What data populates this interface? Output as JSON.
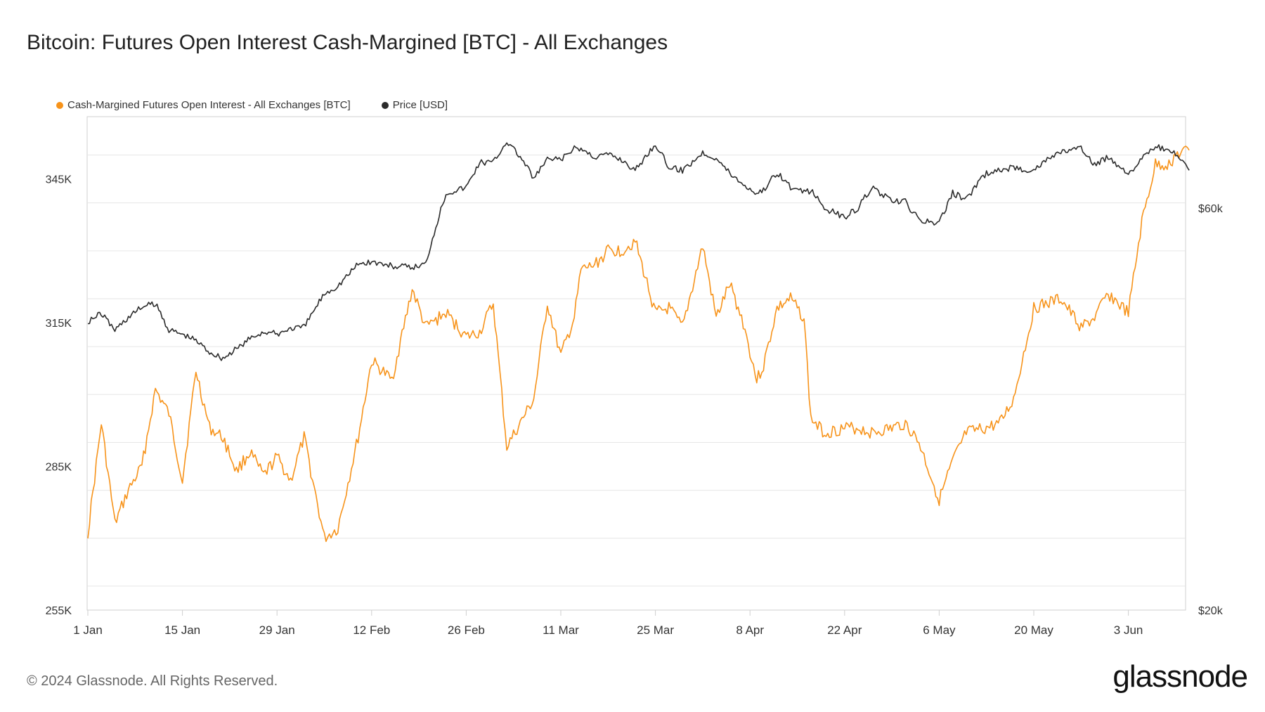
{
  "title": "Bitcoin: Futures Open Interest Cash-Margined [BTC] - All Exchanges",
  "footer": "© 2024 Glassnode. All Rights Reserved.",
  "brand": "glassnode",
  "colors": {
    "oi": "#f7931a",
    "price": "#2b2b2b",
    "grid": "#e6e6e6",
    "axis": "#cfcfcf"
  },
  "chart_data": {
    "type": "line",
    "legend_position": "top-left",
    "grid": true,
    "x_ticks": [
      "1 Jan",
      "15 Jan",
      "29 Jan",
      "12 Feb",
      "26 Feb",
      "11 Mar",
      "25 Mar",
      "8 Apr",
      "22 Apr",
      "6 May",
      "20 May",
      "3 Jun"
    ],
    "x_range_days": [
      0,
      163
    ],
    "left_axis": {
      "ticks": [
        "255K",
        "285K",
        "315K",
        "345K"
      ],
      "range": [
        255000,
        358000
      ]
    },
    "right_axis": {
      "ticks": [
        "$20k",
        "$60k"
      ],
      "scale": "log",
      "range": [
        20000,
        77000
      ]
    },
    "series": [
      {
        "name": "Cash-Margined Futures Open Interest - All Exchanges [BTC]",
        "axis": "left",
        "x_day": [
          0,
          2,
          4,
          6,
          8,
          10,
          12,
          14,
          16,
          18,
          20,
          22,
          24,
          26,
          28,
          30,
          32,
          35,
          37,
          40,
          42,
          45,
          48,
          50,
          53,
          56,
          58,
          60,
          62,
          64,
          66,
          68,
          70,
          72,
          73,
          75,
          77,
          79,
          81,
          84,
          86,
          88,
          91,
          93,
          95,
          97,
          99,
          100,
          102,
          104,
          106,
          107,
          109,
          112,
          114,
          116,
          119,
          121,
          123,
          126,
          128,
          130,
          133,
          135,
          137,
          140,
          142,
          144,
          147,
          149,
          151,
          154,
          156,
          158,
          160,
          161,
          163
        ],
        "values": [
          271000,
          294000,
          273000,
          280000,
          285000,
          301000,
          296000,
          282000,
          305000,
          293000,
          291000,
          284000,
          288000,
          283000,
          287000,
          282000,
          291000,
          270000,
          272000,
          291000,
          307000,
          303000,
          322000,
          314000,
          317000,
          312000,
          313000,
          319000,
          289000,
          294000,
          299000,
          319000,
          308000,
          316000,
          326000,
          327000,
          330000,
          330000,
          332000,
          317000,
          318000,
          314000,
          331000,
          316000,
          323000,
          315000,
          303000,
          306000,
          318000,
          320000,
          316000,
          295000,
          292000,
          293000,
          293000,
          292000,
          293000,
          294000,
          290000,
          278000,
          286000,
          292000,
          293000,
          294000,
          299000,
          318000,
          319000,
          320000,
          314000,
          316000,
          321000,
          317000,
          336000,
          348000,
          348000,
          350000,
          351000
        ]
      },
      {
        "name": "Price [USD]",
        "axis": "right",
        "x_day": [
          0,
          2,
          4,
          6,
          8,
          10,
          12,
          14,
          16,
          18,
          20,
          22,
          24,
          26,
          28,
          30,
          32,
          35,
          37,
          40,
          42,
          45,
          48,
          50,
          53,
          56,
          58,
          60,
          62,
          64,
          66,
          68,
          70,
          72,
          73,
          75,
          77,
          79,
          81,
          84,
          86,
          88,
          91,
          93,
          95,
          97,
          99,
          100,
          102,
          104,
          106,
          107,
          109,
          112,
          114,
          116,
          119,
          121,
          123,
          126,
          128,
          130,
          133,
          135,
          137,
          140,
          142,
          144,
          147,
          149,
          151,
          154,
          156,
          158,
          160,
          161,
          163
        ],
        "values": [
          44000,
          45000,
          43000,
          44500,
          45800,
          46200,
          43000,
          42500,
          41800,
          40500,
          39800,
          40800,
          42000,
          42800,
          42500,
          43200,
          43300,
          47500,
          48500,
          51500,
          51800,
          51200,
          51000,
          51500,
          62500,
          63500,
          68000,
          68000,
          72000,
          69000,
          65000,
          68500,
          68500,
          70500,
          70500,
          69000,
          69500,
          68500,
          66500,
          71500,
          67000,
          66500,
          69800,
          68800,
          66000,
          64000,
          62500,
          63000,
          66200,
          63500,
          62500,
          63000,
          60000,
          58500,
          60000,
          63500,
          61000,
          61000,
          58000,
          57500,
          62500,
          61500,
          66000,
          66500,
          67000,
          66500,
          68500,
          70000,
          70500,
          67500,
          69000,
          66000,
          68500,
          71000,
          70000,
          69500,
          66500
        ]
      }
    ]
  }
}
